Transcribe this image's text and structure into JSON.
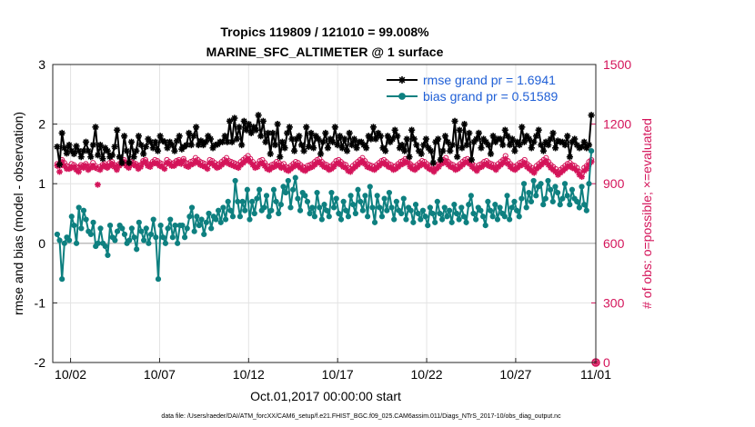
{
  "chart_data": {
    "type": "line",
    "title": "Tropics 119809 / 121010 = 99.008%",
    "subtitle": "MARINE_SFC_ALTIMETER @ 1 surface",
    "xlabel": "Oct.01,2017 00:00:00 start",
    "ylabel": "rmse and bias (model - observation)",
    "y2label": "# of obs: o=possible; ×=evaluated",
    "footnote": "data file: /Users/raeder/DAI/ATM_forcXX/CAM6_setup/f.e21.FHIST_BGC.f09_025.CAM6assim.011/Diags_NTrS_2017-10/obs_diag_output.nc",
    "xlim": [
      0.5,
      31
    ],
    "ylim": [
      -2,
      3
    ],
    "y2lim": [
      0,
      1500
    ],
    "x_ticks": [
      1.5,
      6.5,
      11.5,
      16.5,
      21.5,
      26.5,
      31
    ],
    "x_tick_labels": [
      "10/02",
      "10/07",
      "10/12",
      "10/17",
      "10/22",
      "10/27",
      "11/01"
    ],
    "y_ticks": [
      -2,
      -1,
      0,
      1,
      2,
      3
    ],
    "y_tick_labels": [
      "-2",
      "-1",
      "0",
      "1",
      "2",
      "3"
    ],
    "y2_ticks": [
      0,
      300,
      600,
      900,
      1200,
      1500
    ],
    "y2_tick_labels": [
      "0",
      "300",
      "600",
      "900",
      "1200",
      "1500"
    ],
    "grid": true,
    "legend_position": "top-right",
    "zero_line": 0,
    "colors": {
      "rmse": "#000000",
      "bias": "#0e8080",
      "obs": "#d4145a",
      "legend_text": "#1f5fd6",
      "zero_line": "#bdbdbd"
    },
    "series": [
      {
        "name": "rmse grand pr = 1.6941",
        "axis": "left",
        "marker": "asterisk",
        "color": "#000000",
        "values": [
          1.62,
          1.32,
          1.85,
          1.6,
          1.51,
          1.65,
          1.55,
          1.5,
          1.63,
          1.55,
          1.45,
          1.55,
          1.7,
          1.55,
          1.45,
          1.65,
          1.95,
          1.48,
          1.65,
          1.42,
          1.6,
          1.55,
          1.45,
          1.48,
          1.62,
          1.9,
          1.45,
          1.35,
          1.8,
          1.55,
          1.35,
          1.7,
          1.45,
          1.55,
          1.8,
          1.65,
          1.5,
          1.62,
          1.75,
          1.7,
          1.6,
          1.7,
          1.55,
          1.8,
          1.72,
          1.7,
          1.6,
          1.7,
          1.65,
          1.55,
          1.72,
          1.8,
          1.58,
          1.62,
          1.65,
          1.85,
          1.65,
          1.8,
          1.95,
          1.65,
          1.72,
          1.65,
          1.7,
          1.8,
          1.75,
          1.6,
          1.65,
          1.66,
          1.7,
          1.7,
          1.8,
          1.7,
          2.05,
          1.7,
          2.1,
          1.75,
          1.95,
          1.65,
          2.05,
          1.9,
          2.0,
          1.85,
          1.95,
          1.9,
          2.15,
          1.8,
          2.05,
          1.7,
          1.85,
          1.5,
          1.85,
          1.65,
          2.0,
          1.45,
          1.7,
          1.6,
          1.85,
          1.95,
          1.75,
          1.55,
          1.75,
          1.8,
          1.65,
          1.55,
          1.95,
          1.62,
          1.85,
          1.6,
          1.8,
          1.75,
          1.5,
          1.7,
          1.85,
          1.6,
          1.75,
          1.7,
          1.95,
          1.65,
          1.8,
          1.6,
          1.75,
          1.55,
          1.85,
          1.65,
          1.75,
          1.6,
          1.7,
          1.7,
          1.65,
          1.6,
          1.8,
          1.75,
          1.95,
          1.75,
          1.85,
          1.8,
          1.6,
          1.55,
          1.8,
          1.7,
          1.75,
          1.9,
          1.8,
          1.6,
          1.65,
          1.55,
          1.75,
          1.45,
          1.9,
          1.75,
          1.65,
          1.55,
          1.5,
          1.65,
          1.75,
          1.6,
          1.55,
          1.35,
          1.7,
          1.75,
          1.4,
          1.55,
          1.8,
          1.7,
          1.55,
          1.65,
          2.05,
          1.45,
          1.9,
          1.6,
          2.0,
          1.65,
          1.85,
          1.4,
          1.7,
          1.75,
          1.85,
          1.6,
          1.75,
          1.7,
          1.65,
          1.5,
          1.8,
          1.7,
          1.75,
          1.75,
          1.65,
          1.9,
          1.8,
          1.65,
          1.75,
          1.55,
          1.7,
          1.65,
          1.95,
          1.7,
          1.8,
          1.75,
          1.6,
          1.7,
          1.8,
          1.9,
          1.65,
          1.55,
          1.7,
          1.65,
          1.75,
          1.85,
          1.6,
          1.72,
          1.7,
          1.7,
          1.65,
          1.8,
          1.45,
          1.7,
          1.75,
          1.65,
          1.6,
          1.62,
          1.7,
          1.6,
          1.65,
          2.15
        ]
      },
      {
        "name": "bias grand pr = 0.51589",
        "axis": "left",
        "marker": "circle",
        "color": "#0e8080",
        "values": [
          0.15,
          0.05,
          -0.6,
          0.0,
          0.1,
          0.05,
          0.45,
          0.3,
          0.0,
          0.6,
          0.25,
          0.55,
          0.4,
          0.2,
          0.15,
          0.35,
          -0.05,
          0.0,
          0.25,
          0.0,
          -0.05,
          -0.2,
          0.3,
          0.1,
          0.05,
          0.2,
          0.3,
          0.25,
          0.15,
          0.0,
          0.05,
          0.25,
          0.1,
          -0.1,
          0.35,
          0.2,
          0.05,
          0.25,
          0.0,
          0.15,
          0.4,
          0.1,
          -0.6,
          0.3,
          0.1,
          0.0,
          0.25,
          0.4,
          0.1,
          0.3,
          0.0,
          0.3,
          0.3,
          0.1,
          0.25,
          0.45,
          0.6,
          0.2,
          0.45,
          0.3,
          0.4,
          0.15,
          0.35,
          0.5,
          0.25,
          0.45,
          0.4,
          0.55,
          0.35,
          0.6,
          0.4,
          0.7,
          0.55,
          0.45,
          1.05,
          0.7,
          0.45,
          0.7,
          0.55,
          0.9,
          0.4,
          0.7,
          0.5,
          0.75,
          0.9,
          0.55,
          0.6,
          0.8,
          0.45,
          0.55,
          0.9,
          0.7,
          0.5,
          0.65,
          0.95,
          0.85,
          1.05,
          0.6,
          0.9,
          1.1,
          0.75,
          0.55,
          0.85,
          0.8,
          0.7,
          0.5,
          0.6,
          0.45,
          0.85,
          0.6,
          0.4,
          0.65,
          0.55,
          0.45,
          0.85,
          0.6,
          0.75,
          0.5,
          0.4,
          0.7,
          0.55,
          0.45,
          0.8,
          0.65,
          0.5,
          0.9,
          0.7,
          0.55,
          0.8,
          0.45,
          0.95,
          0.6,
          0.35,
          0.8,
          0.6,
          0.45,
          0.75,
          0.55,
          0.85,
          0.6,
          0.4,
          0.7,
          0.55,
          0.5,
          0.75,
          0.4,
          0.6,
          0.55,
          0.35,
          0.65,
          0.5,
          0.4,
          0.55,
          0.45,
          0.3,
          0.6,
          0.5,
          0.35,
          0.7,
          0.5,
          0.4,
          0.6,
          0.45,
          0.55,
          0.35,
          0.65,
          0.5,
          0.4,
          0.6,
          0.45,
          0.35,
          0.65,
          0.8,
          0.5,
          0.4,
          0.6,
          0.55,
          0.45,
          0.3,
          0.7,
          0.55,
          0.45,
          0.65,
          0.4,
          0.6,
          0.5,
          0.45,
          0.8,
          0.4,
          0.6,
          0.7,
          0.55,
          0.45,
          0.75,
          1.0,
          0.6,
          0.85,
          0.7,
          1.05,
          0.8,
          0.95,
          1.0,
          0.65,
          0.75,
          1.05,
          0.9,
          0.7,
          0.95,
          0.85,
          0.65,
          0.75,
          1.0,
          0.8,
          0.65,
          0.9,
          0.75,
          0.7,
          0.6,
          0.95,
          0.65,
          0.55,
          1.0,
          1.55
        ]
      },
      {
        "name": "obs possible",
        "axis": "right",
        "marker": "circle-open",
        "color": "#d4145a",
        "values": [
          1000,
          990,
          1020,
          1005,
          990,
          985,
          1000,
          995,
          985,
          980,
          995,
          990,
          1000,
          985,
          990,
          1005,
          990,
          975,
          985,
          995,
          1000,
          990,
          1005,
          1010,
          995,
          985,
          1000,
          1010,
          1020,
          1000,
          995,
          1010,
          1005,
          1000,
          990,
          995,
          1015,
          1020,
          1000,
          995,
          1010,
          1020,
          1015,
          1005,
          1000,
          990,
          1020,
          1010,
          1000,
          1005,
          1015,
          1020,
          1010,
          1025,
          1005,
          1000,
          1010,
          1015,
          1030,
          1020,
          1010,
          1005,
          1000,
          990,
          1020,
          1015,
          1005,
          995,
          1000,
          1010,
          1020,
          1030,
          1015,
          1010,
          1005,
          1000,
          995,
          1010,
          1020,
          1030,
          1040,
          1025,
          1010,
          995,
          1000,
          1015,
          1020,
          1005,
          990,
          985,
          995,
          1000,
          1010,
          1005,
          995,
          1000,
          985,
          980,
          990,
          1000,
          1010,
          1005,
          995,
          985,
          980,
          990,
          995,
          1000,
          1010,
          1020,
          1025,
          1010,
          1000,
          995,
          985,
          990,
          1000,
          1015,
          1020,
          1010,
          1000,
          995,
          980,
          975,
          990,
          1000,
          1010,
          1020,
          1030,
          1015,
          1000,
          995,
          990,
          985,
          995,
          1005,
          1015,
          1020,
          1010,
          1000,
          995,
          985,
          990,
          1000,
          1010,
          1015,
          1025,
          1020,
          1000,
          990,
          985,
          995,
          1005,
          1015,
          1010,
          1000,
          990,
          985,
          975,
          990,
          1000,
          1015,
          1020,
          1030,
          1010,
          1000,
          995,
          985,
          990,
          1000,
          1010,
          1020,
          1025,
          1015,
          1000,
          990,
          980,
          995,
          1000,
          1010,
          1015,
          1005,
          1000,
          995,
          985,
          1000,
          1010,
          1020,
          1040,
          1015,
          1000,
          990,
          985,
          995,
          1005,
          1010,
          1020,
          1000,
          990,
          980,
          970,
          990,
          1000,
          1010,
          1020,
          1030,
          1010,
          995,
          985,
          975,
          960,
          970,
          980,
          990,
          1000,
          1005,
          995,
          990,
          980,
          960,
          950,
          980,
          990,
          1010,
          1020
        ]
      },
      {
        "name": "obs evaluated",
        "axis": "right",
        "marker": "asterisk",
        "color": "#d4145a",
        "values": [
          990,
          960,
          1010,
          990,
          975,
          975,
          980,
          985,
          970,
          960,
          985,
          980,
          990,
          970,
          980,
          990,
          980,
          895,
          970,
          985,
          990,
          980,
          990,
          1000,
          985,
          970,
          990,
          1000,
          1010,
          990,
          980,
          1000,
          995,
          990,
          975,
          985,
          1005,
          1010,
          990,
          985,
          1000,
          1005,
          1000,
          990,
          985,
          975,
          1005,
          1000,
          990,
          990,
          1000,
          1010,
          1000,
          1015,
          990,
          985,
          995,
          1000,
          1015,
          1005,
          995,
          990,
          985,
          975,
          1005,
          1000,
          990,
          980,
          985,
          995,
          1005,
          1015,
          1000,
          995,
          990,
          985,
          980,
          995,
          1005,
          1015,
          1025,
          1010,
          995,
          980,
          985,
          1000,
          1005,
          990,
          975,
          970,
          980,
          985,
          995,
          990,
          980,
          985,
          970,
          965,
          975,
          985,
          995,
          990,
          980,
          970,
          965,
          975,
          980,
          985,
          995,
          1005,
          1010,
          995,
          985,
          980,
          970,
          975,
          985,
          1000,
          1005,
          995,
          985,
          980,
          965,
          960,
          975,
          985,
          995,
          1005,
          1015,
          1000,
          985,
          980,
          975,
          970,
          980,
          990,
          1000,
          1005,
          995,
          985,
          980,
          970,
          975,
          985,
          995,
          1000,
          1010,
          1005,
          985,
          975,
          970,
          980,
          990,
          1000,
          995,
          985,
          975,
          970,
          960,
          975,
          985,
          1000,
          1005,
          1015,
          995,
          985,
          980,
          970,
          975,
          985,
          995,
          1005,
          1010,
          1000,
          985,
          975,
          965,
          980,
          985,
          995,
          1000,
          990,
          985,
          980,
          970,
          985,
          995,
          1005,
          1025,
          1000,
          985,
          975,
          970,
          980,
          990,
          995,
          1005,
          985,
          975,
          965,
          955,
          975,
          985,
          995,
          1005,
          1015,
          995,
          980,
          970,
          960,
          945,
          955,
          965,
          975,
          985,
          990,
          980,
          975,
          965,
          945,
          935,
          965,
          975,
          995,
          1010
        ]
      }
    ],
    "endpoint_markers": [
      {
        "x": 31,
        "y2": 0,
        "marker": "circle-open",
        "color": "#d4145a"
      },
      {
        "x": 31,
        "y2": 0,
        "marker": "asterisk",
        "color": "#d4145a"
      }
    ]
  }
}
